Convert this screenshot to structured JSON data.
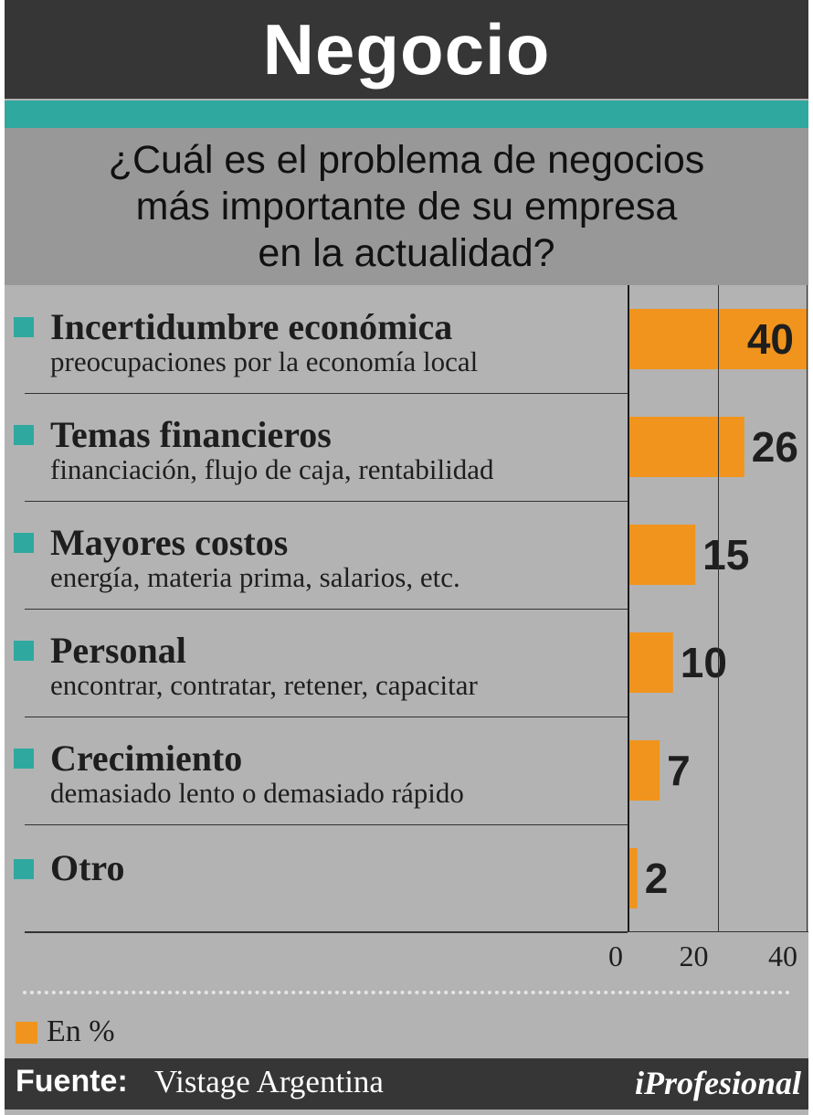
{
  "header": {
    "title": "Negocio"
  },
  "question": {
    "line1": "¿Cuál es el problema de negocios",
    "line2": "más importante de su empresa",
    "line3": "en la actualidad?"
  },
  "chart_data": {
    "type": "bar",
    "orientation": "horizontal",
    "categories": [
      {
        "label": "Incertidumbre económica",
        "subtitle": "preocupaciones por la economía local"
      },
      {
        "label": "Temas financieros",
        "subtitle": "financiación, flujo de caja, rentabilidad"
      },
      {
        "label": "Mayores costos",
        "subtitle": "energía, materia prima, salarios, etc."
      },
      {
        "label": "Personal",
        "subtitle": "encontrar, contratar, retener, capacitar"
      },
      {
        "label": "Crecimiento",
        "subtitle": "demasiado lento o demasiado rápido"
      },
      {
        "label": "Otro",
        "subtitle": ""
      }
    ],
    "values": [
      40,
      26,
      15,
      10,
      7,
      2
    ],
    "value_labels": [
      "40",
      "26",
      "15",
      "10",
      "7",
      "2"
    ],
    "xlim": [
      0,
      40
    ],
    "xticks": [
      "0",
      "20",
      "40"
    ],
    "gridlines_at": [
      0,
      20,
      40
    ],
    "unit_legend": "En %",
    "bar_color": "#f0941d",
    "marker_color": "#2fa99f"
  },
  "legend": {
    "label": "En %"
  },
  "footer": {
    "label": "Fuente:",
    "source": "Vistage Argentina",
    "brand": "iProfesional"
  },
  "colors": {
    "dark": "#363636",
    "teal": "#2fa99f",
    "orange": "#f0941d",
    "panel": "#b3b3b3",
    "question_bg": "#989898"
  }
}
